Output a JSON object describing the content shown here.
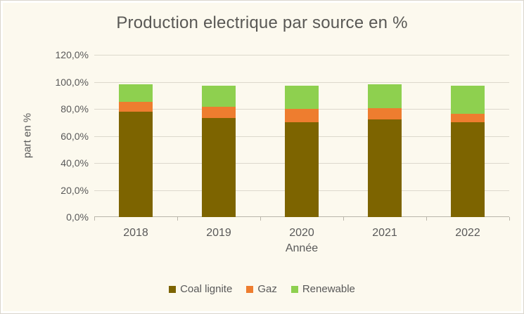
{
  "chart_data": {
    "type": "bar",
    "stacked": true,
    "title": "Production electrique par source en %",
    "xlabel": "Année",
    "ylabel": "part en %",
    "categories": [
      "2018",
      "2019",
      "2020",
      "2021",
      "2022"
    ],
    "series": [
      {
        "name": "Coal lignite",
        "color": "#7d6400",
        "values": [
          78,
          73,
          70,
          72,
          70
        ]
      },
      {
        "name": "Gaz",
        "color": "#ee7d2f",
        "values": [
          7,
          8.5,
          10,
          8.5,
          6.5
        ]
      },
      {
        "name": "Renewable",
        "color": "#8ed04f",
        "values": [
          13,
          15.5,
          17,
          17.5,
          20.5
        ]
      }
    ],
    "ylim": [
      0,
      120
    ],
    "y_tick_labels": [
      "0,0%",
      "20,0%",
      "40,0%",
      "60,0%",
      "80,0%",
      "100,0%",
      "120,0%"
    ],
    "grid": true,
    "legend_position": "bottom"
  },
  "style": {
    "background": "#fcf9ee",
    "text_color": "#595959",
    "title_color": "#595855",
    "grid_color": "#dcd8cc",
    "axis_color": "#b9b5aa"
  }
}
